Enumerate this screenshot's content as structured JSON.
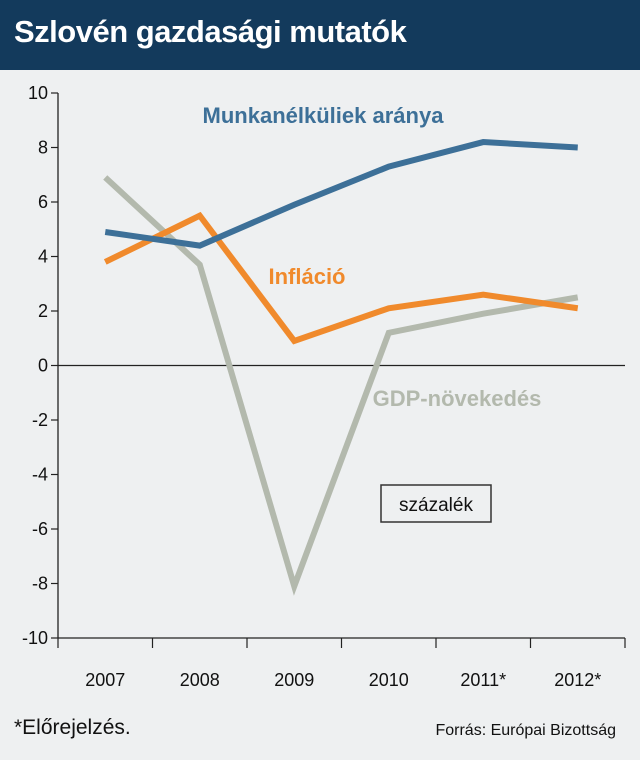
{
  "header": {
    "title": "Szlovén gazdasági mutatók"
  },
  "footer": {
    "footnote": "*Előrejelzés.",
    "source": "Forrás: Európai Bizottság"
  },
  "chart_data": {
    "type": "line",
    "title": "Szlovén gazdasági mutatók",
    "unit_label": "százalék",
    "categories": [
      "2007",
      "2008",
      "2009",
      "2010",
      "2011*",
      "2012*"
    ],
    "ylim": [
      -10,
      10
    ],
    "y_ticks": [
      "10",
      "8",
      "6",
      "4",
      "2",
      "0",
      "-2",
      "-4",
      "-6",
      "-8",
      "-10"
    ],
    "grid": false,
    "series": [
      {
        "name": "Munkanélküliek aránya",
        "color": "#3d7098",
        "values": [
          4.9,
          4.4,
          5.9,
          7.3,
          8.2,
          8.0
        ]
      },
      {
        "name": "Infláció",
        "color": "#f08a2c",
        "values": [
          3.8,
          5.5,
          0.9,
          2.1,
          2.6,
          2.1
        ]
      },
      {
        "name": "GDP-növekedés",
        "color": "#b3b9ad",
        "values": [
          6.9,
          3.7,
          -8.1,
          1.2,
          1.9,
          2.5
        ]
      }
    ]
  }
}
